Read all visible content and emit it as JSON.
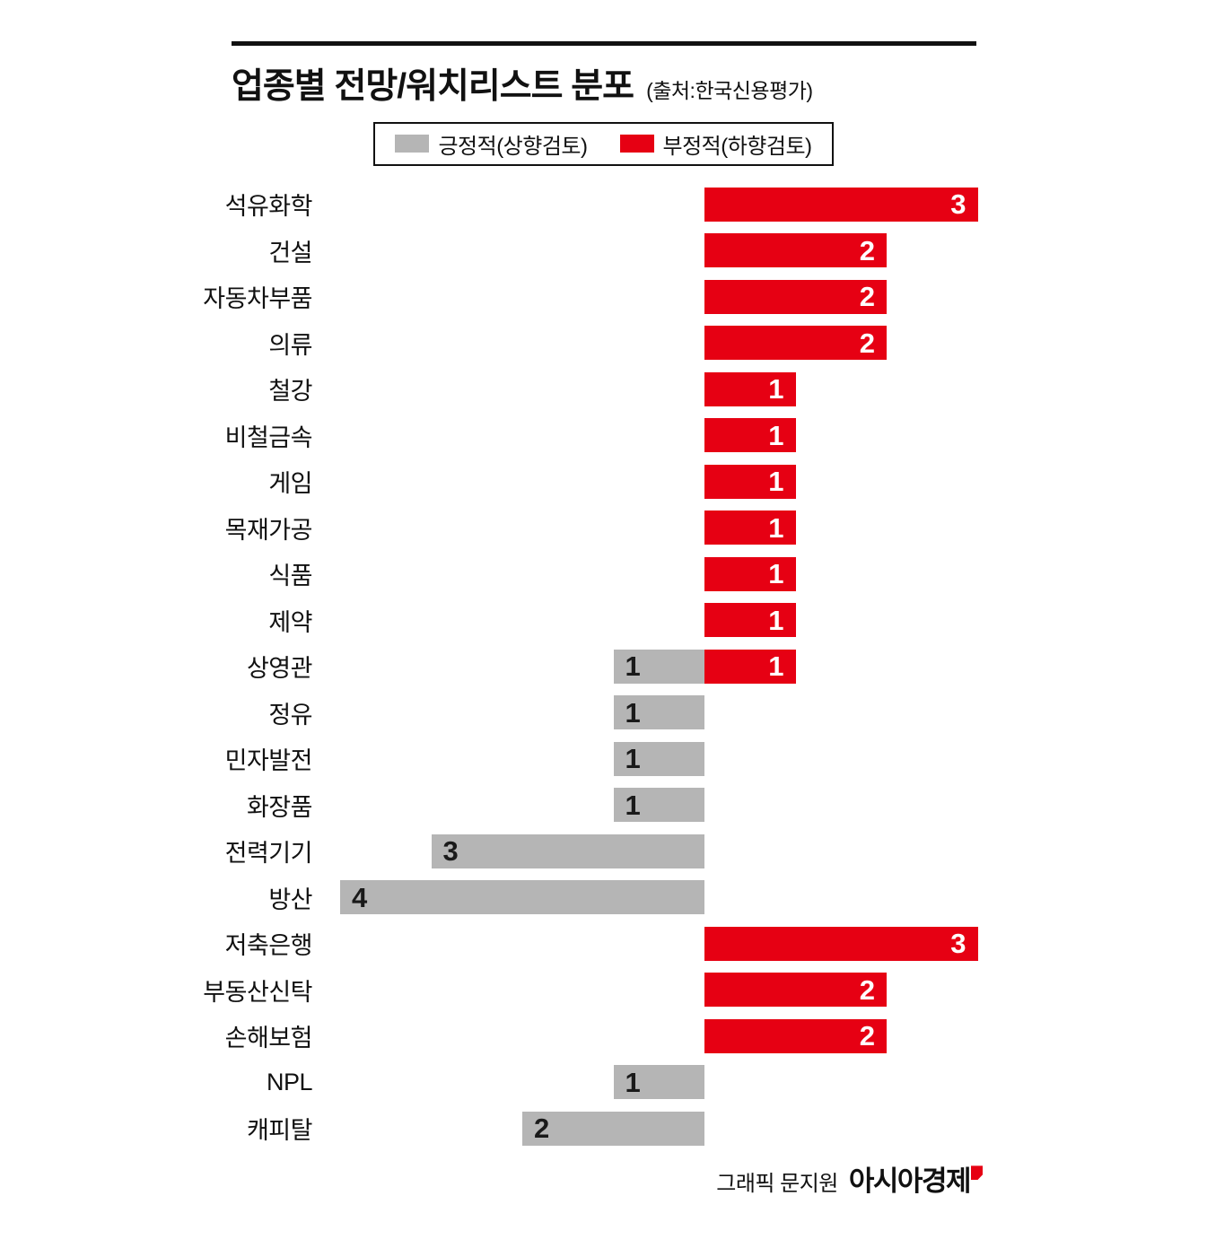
{
  "title": "업종별 전망/워치리스트 분포",
  "source": "(출처:한국신용평가)",
  "colors": {
    "positive": "#b5b5b5",
    "negative": "#e60013",
    "text": "#111111",
    "negative_value_text": "#ffffff",
    "positive_value_text": "#1a1a1a"
  },
  "legend": [
    {
      "label": "긍정적(상향검토)",
      "color": "#b5b5b5"
    },
    {
      "label": "부정적(하향검토)",
      "color": "#e60013"
    }
  ],
  "chart_data": {
    "type": "bar",
    "orientation": "horizontal-diverging",
    "title": "업종별 전망/워치리스트 분포",
    "source": "(출처:한국신용평가)",
    "value_axis": "count",
    "xlim": [
      -4,
      5
    ],
    "grid": false,
    "legend_position": "top-center",
    "categories": [
      "석유화학",
      "건설",
      "자동차부품",
      "의류",
      "철강",
      "비철금속",
      "게임",
      "목재가공",
      "식품",
      "제약",
      "상영관",
      "정유",
      "민자발전",
      "화장품",
      "전력기기",
      "방산",
      "저축은행",
      "부동산신탁",
      "손해보험",
      "NPL",
      "캐피탈"
    ],
    "series": [
      {
        "name": "긍정적(상향검토)",
        "direction": "left",
        "color": "#b5b5b5",
        "values": [
          0,
          0,
          0,
          0,
          0,
          0,
          0,
          0,
          0,
          0,
          1,
          1,
          1,
          1,
          3,
          4,
          0,
          0,
          0,
          1,
          2
        ]
      },
      {
        "name": "부정적(하향검토)",
        "direction": "right",
        "color": "#e60013",
        "values": [
          3,
          2,
          2,
          2,
          1,
          1,
          1,
          1,
          1,
          1,
          1,
          0,
          0,
          0,
          0,
          0,
          3,
          2,
          2,
          0,
          0
        ]
      }
    ]
  },
  "footer": {
    "credit": "그래픽 문지원",
    "brand": "아시아경제"
  }
}
